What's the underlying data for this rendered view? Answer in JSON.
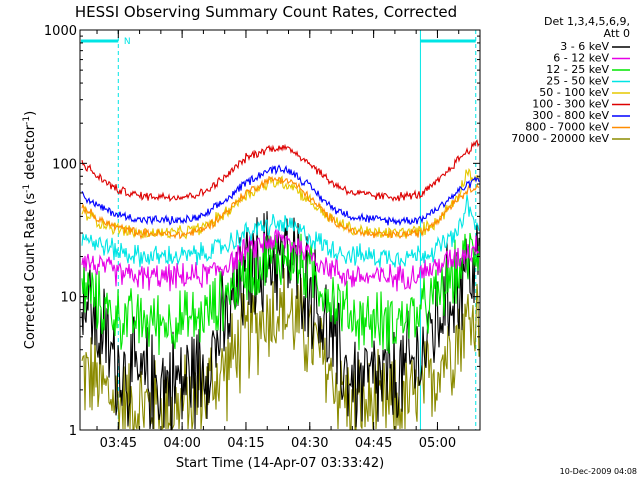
{
  "chart_data": {
    "type": "line",
    "title": "HESSI Observing Summary Count Rates, Corrected",
    "xlabel": "Start Time (14-Apr-07 03:33:42)",
    "ylabel_main": "Corrected Count Rate (s",
    "ylabel_sup1": "-1",
    "ylabel_mid": " detector",
    "ylabel_sup2": "-1",
    "ylabel_end": ")",
    "timestamp": "10-Dec-2009 04:08",
    "y_scale": "log",
    "ylim": [
      1,
      1000
    ],
    "xlim": [
      "03:36",
      "05:10"
    ],
    "y_ticks": [
      {
        "value": 1,
        "label": "1"
      },
      {
        "value": 10,
        "label": "10"
      },
      {
        "value": 100,
        "label": "100"
      },
      {
        "value": 1000,
        "label": "1000"
      }
    ],
    "x_ticks": [
      {
        "value": "03:45",
        "label": "03:45"
      },
      {
        "value": "04:00",
        "label": "04:00"
      },
      {
        "value": "04:15",
        "label": "04:15"
      },
      {
        "value": "04:30",
        "label": "04:30"
      },
      {
        "value": "04:45",
        "label": "04:45"
      },
      {
        "value": "05:00",
        "label": "05:00"
      }
    ],
    "legend_header": [
      "Det 1,3,4,5,6,9,",
      "Att 0"
    ],
    "legend_position": "right",
    "night_flag": {
      "label": "N",
      "color": "#00e5e5",
      "intervals": [
        [
          "03:36",
          "03:45"
        ],
        [
          "04:56",
          "05:09"
        ]
      ]
    },
    "series": [
      {
        "name": "3 - 6 keV",
        "color": "#000000",
        "noise": 0.5,
        "x": [
          "03:36",
          "03:40",
          "03:45",
          "03:50",
          "04:00",
          "04:05",
          "04:10",
          "04:15",
          "04:20",
          "04:23",
          "04:26",
          "04:30",
          "04:35",
          "04:40",
          "04:45",
          "04:50",
          "04:56",
          "05:00",
          "05:05",
          "05:09"
        ],
        "y": [
          13,
          6,
          3,
          2.3,
          2.3,
          3,
          6,
          14,
          19,
          20,
          18,
          12,
          4.5,
          2.3,
          2.3,
          2.3,
          3.5,
          7,
          13,
          17
        ]
      },
      {
        "name": "6 - 12 keV",
        "color": "#e600e6",
        "noise": 0.12,
        "x": [
          "03:36",
          "03:40",
          "03:45",
          "03:50",
          "04:00",
          "04:05",
          "04:10",
          "04:15",
          "04:20",
          "04:23",
          "04:26",
          "04:30",
          "04:35",
          "04:40",
          "04:45",
          "04:50",
          "04:56",
          "05:00",
          "05:05",
          "05:09"
        ],
        "y": [
          20,
          17,
          15,
          14,
          14,
          14.5,
          17,
          22,
          26,
          27,
          25,
          21,
          16,
          14,
          14,
          14,
          15,
          17,
          20,
          24
        ]
      },
      {
        "name": "12 - 25 keV",
        "color": "#00e600",
        "noise": 0.28,
        "x": [
          "03:36",
          "03:40",
          "03:45",
          "03:50",
          "04:00",
          "04:05",
          "04:10",
          "04:15",
          "04:20",
          "04:23",
          "04:26",
          "04:30",
          "04:35",
          "04:40",
          "04:45",
          "04:50",
          "04:56",
          "05:00",
          "05:05",
          "05:09"
        ],
        "y": [
          13,
          9,
          7,
          6.5,
          6.5,
          7,
          10,
          15,
          19,
          20,
          19,
          15,
          10,
          7,
          6.5,
          6.5,
          7.5,
          10,
          16,
          24
        ]
      },
      {
        "name": "25 - 50 keV",
        "color": "#00e5e5",
        "noise": 0.1,
        "x": [
          "03:36",
          "03:40",
          "03:45",
          "03:50",
          "04:00",
          "04:05",
          "04:10",
          "04:15",
          "04:20",
          "04:23",
          "04:26",
          "04:30",
          "04:35",
          "04:40",
          "04:45",
          "04:50",
          "04:56",
          "05:00",
          "05:05",
          "05:07",
          "05:09"
        ],
        "y": [
          30,
          25,
          22,
          20,
          20,
          21,
          24,
          30,
          34,
          35,
          33,
          28,
          23,
          20.5,
          20,
          20,
          20.5,
          23,
          30,
          50,
          33
        ]
      },
      {
        "name": "50 - 100 keV",
        "color": "#e6c800",
        "noise": 0.06,
        "x": [
          "03:36",
          "03:40",
          "03:45",
          "03:50",
          "04:00",
          "04:05",
          "04:10",
          "04:15",
          "04:20",
          "04:23",
          "04:26",
          "04:30",
          "04:35",
          "04:40",
          "04:45",
          "04:50",
          "04:56",
          "05:00",
          "05:05",
          "05:07",
          "05:09"
        ],
        "y": [
          45,
          37,
          32,
          30,
          30,
          33,
          42,
          58,
          70,
          73,
          68,
          52,
          38,
          32,
          30,
          30,
          31,
          37,
          58,
          90,
          72
        ]
      },
      {
        "name": "100 - 300 keV",
        "color": "#dd0000",
        "noise": 0.04,
        "x": [
          "03:36",
          "03:40",
          "03:45",
          "03:50",
          "04:00",
          "04:05",
          "04:10",
          "04:15",
          "04:20",
          "04:23",
          "04:26",
          "04:30",
          "04:35",
          "04:40",
          "04:45",
          "04:50",
          "04:56",
          "05:00",
          "05:05",
          "05:09"
        ],
        "y": [
          105,
          80,
          63,
          57,
          56,
          60,
          78,
          110,
          128,
          132,
          125,
          100,
          72,
          60,
          57,
          56,
          58,
          72,
          108,
          140
        ]
      },
      {
        "name": "300 - 800 keV",
        "color": "#0000ff",
        "noise": 0.04,
        "x": [
          "03:36",
          "03:40",
          "03:45",
          "03:50",
          "04:00",
          "04:05",
          "04:10",
          "04:15",
          "04:20",
          "04:23",
          "04:26",
          "04:30",
          "04:35",
          "04:40",
          "04:45",
          "04:50",
          "04:56",
          "05:00",
          "05:05",
          "05:09"
        ],
        "y": [
          60,
          48,
          41,
          38,
          37,
          40,
          52,
          72,
          88,
          92,
          86,
          67,
          47,
          40,
          38,
          37,
          38,
          46,
          62,
          76
        ]
      },
      {
        "name": "800 - 7000 keV",
        "color": "#ff8c00",
        "noise": 0.04,
        "x": [
          "03:36",
          "03:40",
          "03:45",
          "03:50",
          "04:00",
          "04:05",
          "04:10",
          "04:15",
          "04:20",
          "04:23",
          "04:26",
          "04:30",
          "04:35",
          "04:40",
          "04:45",
          "04:50",
          "04:56",
          "05:00",
          "05:05",
          "05:09"
        ],
        "y": [
          50,
          38,
          33,
          30,
          29,
          32,
          42,
          60,
          74,
          77,
          72,
          55,
          38,
          31,
          29,
          29,
          30,
          38,
          56,
          68
        ]
      },
      {
        "name": "7000 - 20000 keV",
        "color": "#8b8b00",
        "noise": 0.45,
        "x": [
          "03:36",
          "03:40",
          "03:45",
          "03:50",
          "04:00",
          "04:05",
          "04:10",
          "04:15",
          "04:20",
          "04:23",
          "04:26",
          "04:30",
          "04:35",
          "04:40",
          "04:45",
          "04:50",
          "04:56",
          "05:00",
          "05:05",
          "05:09"
        ],
        "y": [
          2.8,
          2.3,
          1.6,
          1.5,
          1.5,
          2,
          2.8,
          5,
          7.5,
          8,
          7,
          5,
          2.6,
          1.5,
          1.5,
          1.5,
          1.8,
          3,
          5.5,
          7.5
        ]
      }
    ]
  }
}
